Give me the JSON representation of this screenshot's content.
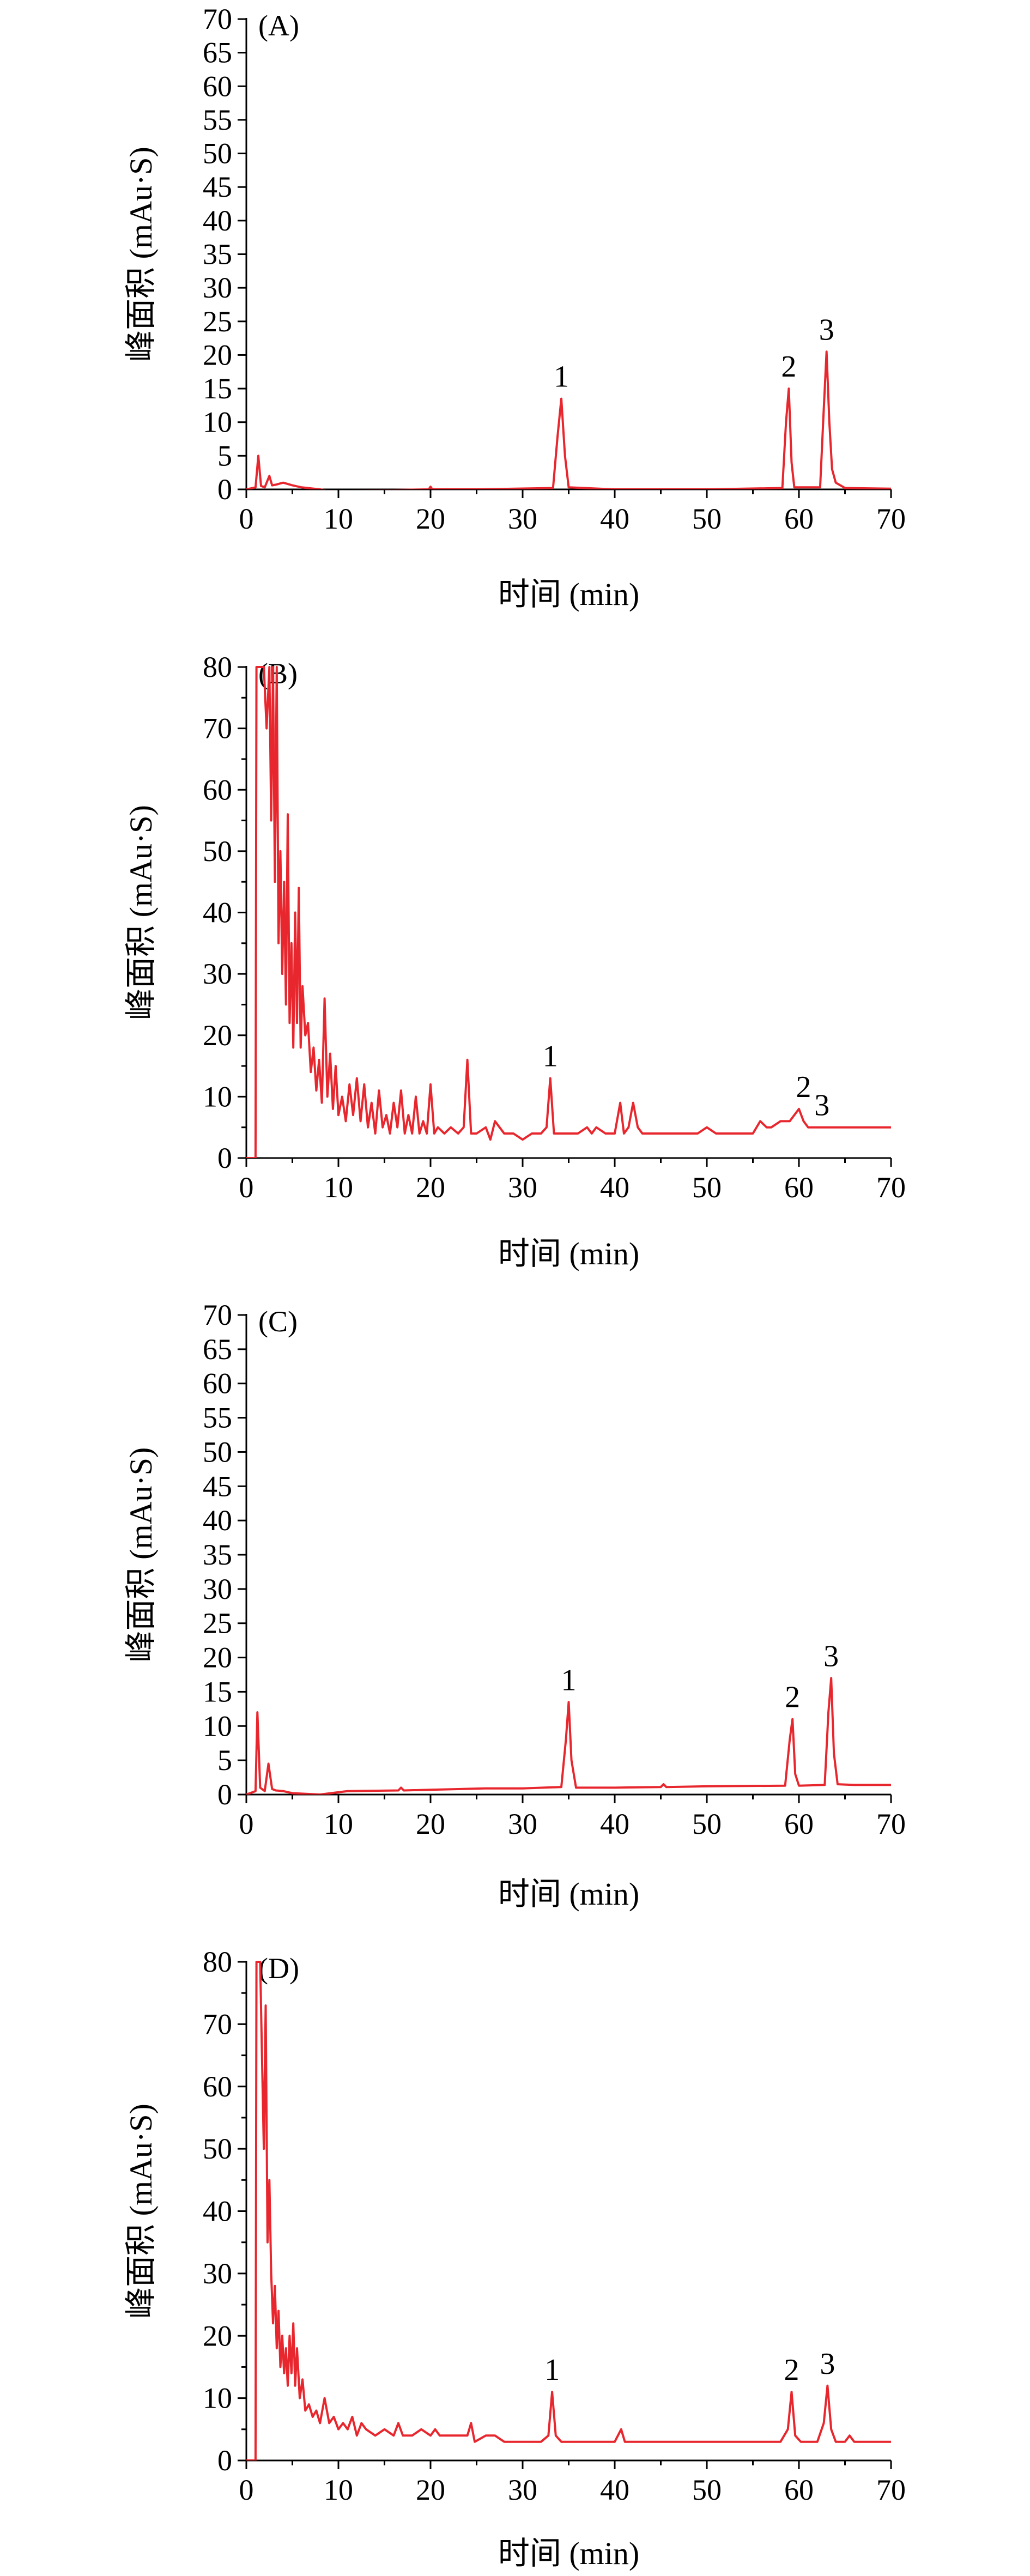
{
  "chart_data": [
    {
      "type": "line",
      "panel_label": "(A)",
      "xlabel": "时间 (min)",
      "ylabel": "峰面积 (mAu·S)",
      "xlim": [
        0,
        70
      ],
      "ylim": [
        0,
        70
      ],
      "xticks": [
        0,
        10,
        20,
        30,
        40,
        50,
        60,
        70
      ],
      "yticks": [
        0,
        5,
        10,
        15,
        20,
        25,
        30,
        35,
        40,
        45,
        50,
        55,
        60,
        65,
        70
      ],
      "grid": false,
      "series": [
        {
          "color": "#e8262d",
          "x": [
            0,
            1.0,
            1.3,
            1.6,
            2.0,
            2.5,
            2.8,
            3.2,
            4.0,
            5.0,
            6.0,
            8.0,
            9.0,
            15.0,
            19.8,
            20.0,
            20.2,
            25.0,
            33.3,
            33.8,
            34.2,
            34.6,
            35.0,
            40.0,
            50.0,
            58.2,
            58.6,
            58.9,
            59.2,
            59.5,
            62.3,
            62.7,
            63.0,
            63.3,
            63.6,
            64.0,
            65.0,
            70.0
          ],
          "y": [
            0,
            0.3,
            5.0,
            0.5,
            0.3,
            2.0,
            0.6,
            0.7,
            1.0,
            0.6,
            0.3,
            0.0,
            -0.2,
            -0.1,
            0.0,
            0.4,
            0.0,
            0.0,
            0.2,
            8.0,
            13.5,
            5.0,
            0.3,
            0.0,
            0.0,
            0.2,
            10.0,
            15.0,
            4.0,
            0.3,
            0.3,
            12.0,
            20.5,
            10.0,
            3.0,
            1.0,
            0.2,
            0.1
          ]
        }
      ],
      "annotations": [
        {
          "text": "1",
          "x": 34.2,
          "y": 13.5
        },
        {
          "text": "2",
          "x": 58.9,
          "y": 15.0
        },
        {
          "text": "3",
          "x": 63.0,
          "y": 20.5
        }
      ]
    },
    {
      "type": "line",
      "panel_label": "(B)",
      "xlabel": "时间 (min)",
      "ylabel": "峰面积 (mAu·S)",
      "xlim": [
        0,
        70
      ],
      "ylim": [
        0,
        80
      ],
      "xticks": [
        0,
        10,
        20,
        30,
        40,
        50,
        60,
        70
      ],
      "yticks": [
        0,
        10,
        20,
        30,
        40,
        50,
        60,
        70,
        80
      ],
      "grid": false,
      "series": [
        {
          "color": "#e8262d",
          "x": [
            0,
            1.0,
            1.1,
            1.3,
            1.6,
            1.9,
            2.2,
            2.5,
            2.7,
            2.9,
            3.1,
            3.3,
            3.5,
            3.7,
            3.9,
            4.1,
            4.3,
            4.5,
            4.7,
            4.9,
            5.1,
            5.3,
            5.5,
            5.7,
            5.9,
            6.1,
            6.4,
            6.7,
            7.0,
            7.3,
            7.6,
            7.9,
            8.2,
            8.5,
            8.8,
            9.1,
            9.4,
            9.7,
            10.0,
            10.4,
            10.8,
            11.2,
            11.6,
            12.0,
            12.4,
            12.8,
            13.2,
            13.6,
            14.0,
            14.4,
            14.8,
            15.2,
            15.6,
            16.0,
            16.4,
            16.8,
            17.2,
            17.6,
            18.0,
            18.4,
            18.8,
            19.2,
            19.6,
            20.0,
            20.4,
            20.8,
            21.5,
            22.2,
            23.0,
            23.6,
            24.0,
            24.4,
            25.0,
            26.0,
            26.5,
            27.0,
            28.0,
            29.0,
            30.0,
            31.0,
            32.0,
            32.6,
            33.0,
            33.4,
            34.0,
            35.0,
            36.0,
            37.0,
            37.5,
            38.0,
            39.0,
            40.0,
            40.6,
            41.0,
            41.5,
            42.0,
            42.5,
            43.0,
            44.0,
            45.0,
            46.0,
            47.0,
            48.0,
            49.0,
            50.0,
            51.0,
            52.0,
            53.0,
            54.0,
            55.0,
            55.8,
            56.5,
            57.0,
            58.0,
            59.0,
            59.5,
            60.0,
            60.5,
            61.0,
            61.5,
            62.0,
            62.5,
            63.0,
            63.5,
            64.0,
            65.0,
            65.5,
            66.0,
            67.0,
            68.0,
            69.0,
            70.0
          ],
          "y": [
            0,
            0,
            80,
            80,
            80,
            80,
            70,
            80,
            55,
            80,
            45,
            80,
            35,
            50,
            30,
            45,
            25,
            56,
            22,
            35,
            18,
            40,
            22,
            44,
            18,
            28,
            20,
            22,
            14,
            18,
            11,
            16,
            9,
            26,
            10,
            17,
            8,
            15,
            7,
            10,
            6,
            12,
            7,
            13,
            6,
            12,
            5,
            9,
            4,
            11,
            5,
            7,
            4,
            9,
            5,
            11,
            4,
            7,
            4,
            10,
            4,
            6,
            4,
            12,
            4,
            5,
            4,
            5,
            4,
            5,
            16,
            4,
            4,
            5,
            3,
            6,
            4,
            4,
            3,
            4,
            4,
            5,
            13,
            4,
            4,
            4,
            4,
            5,
            4,
            5,
            4,
            4,
            9,
            4,
            5,
            9,
            5,
            4,
            4,
            4,
            4,
            4,
            4,
            4,
            5,
            4,
            4,
            4,
            4,
            4,
            6,
            5,
            5,
            6,
            6,
            7,
            8,
            6,
            5,
            5,
            5,
            5,
            5,
            5,
            5,
            5,
            5,
            5,
            5,
            5,
            5,
            5
          ]
        }
      ],
      "annotations": [
        {
          "text": "1",
          "x": 33.0,
          "y": 13
        },
        {
          "text": "2",
          "x": 60.5,
          "y": 8
        },
        {
          "text": "3",
          "x": 62.5,
          "y": 5
        }
      ]
    },
    {
      "type": "line",
      "panel_label": "(C)",
      "xlabel": "时间 (min)",
      "ylabel": "峰面积 (mAu·S)",
      "xlim": [
        0,
        70
      ],
      "ylim": [
        0,
        70
      ],
      "xticks": [
        0,
        10,
        20,
        30,
        40,
        50,
        60,
        70
      ],
      "yticks": [
        0,
        5,
        10,
        15,
        20,
        25,
        30,
        35,
        40,
        45,
        50,
        55,
        60,
        65,
        70
      ],
      "grid": false,
      "series": [
        {
          "color": "#e8262d",
          "x": [
            0,
            1.0,
            1.2,
            1.5,
            2.0,
            2.4,
            2.8,
            3.2,
            4.0,
            5.0,
            8.0,
            11.0,
            16.5,
            16.8,
            17.1,
            20.0,
            26.0,
            30.0,
            34.2,
            34.7,
            35.0,
            35.3,
            35.8,
            40.0,
            45.0,
            45.3,
            45.6,
            50.0,
            58.5,
            59.0,
            59.3,
            59.6,
            60.0,
            62.8,
            63.2,
            63.5,
            63.8,
            64.2,
            66.0,
            70.0
          ],
          "y": [
            0,
            0.5,
            12.0,
            1.0,
            0.5,
            4.5,
            0.8,
            0.6,
            0.5,
            0.2,
            0.0,
            0.5,
            0.6,
            1.0,
            0.6,
            0.7,
            0.9,
            0.9,
            1.1,
            8.0,
            13.5,
            5.0,
            1.0,
            1.0,
            1.1,
            1.5,
            1.1,
            1.2,
            1.3,
            8.0,
            11.0,
            3.0,
            1.3,
            1.4,
            12.0,
            17.0,
            6.0,
            1.5,
            1.4,
            1.4
          ]
        }
      ],
      "annotations": [
        {
          "text": "1",
          "x": 35.0,
          "y": 13.5
        },
        {
          "text": "2",
          "x": 59.3,
          "y": 11.0
        },
        {
          "text": "3",
          "x": 63.5,
          "y": 17.0
        }
      ]
    },
    {
      "type": "line",
      "panel_label": "(D)",
      "xlabel": "时间 (min)",
      "ylabel": "峰面积 (mAu·S)",
      "xlim": [
        0,
        70
      ],
      "ylim": [
        0,
        80
      ],
      "xticks": [
        0,
        10,
        20,
        30,
        40,
        50,
        60,
        70
      ],
      "yticks": [
        0,
        10,
        20,
        30,
        40,
        50,
        60,
        70,
        80
      ],
      "grid": false,
      "series": [
        {
          "color": "#e8262d",
          "x": [
            0,
            1.0,
            1.1,
            1.3,
            1.5,
            1.7,
            1.9,
            2.1,
            2.3,
            2.5,
            2.7,
            2.9,
            3.1,
            3.3,
            3.5,
            3.7,
            3.9,
            4.1,
            4.3,
            4.5,
            4.7,
            4.9,
            5.1,
            5.3,
            5.5,
            5.8,
            6.1,
            6.4,
            6.8,
            7.2,
            7.6,
            8.0,
            8.5,
            9.0,
            9.5,
            10.0,
            10.5,
            11.0,
            11.5,
            12.0,
            12.5,
            13.0,
            14.0,
            15.0,
            16.0,
            16.5,
            17.0,
            18.0,
            19.0,
            20.0,
            20.5,
            21.0,
            22.0,
            23.0,
            24.0,
            24.4,
            24.8,
            26.0,
            27.0,
            28.0,
            30.0,
            32.0,
            32.8,
            33.2,
            33.6,
            34.2,
            36.0,
            38.0,
            40.0,
            40.7,
            41.1,
            42.0,
            45.0,
            50.0,
            55.0,
            58.0,
            58.8,
            59.2,
            59.6,
            60.2,
            62.0,
            62.7,
            63.1,
            63.5,
            64.0,
            65.0,
            65.5,
            66.0,
            70.0
          ],
          "y": [
            0,
            0,
            80,
            80,
            80,
            65,
            50,
            73,
            35,
            45,
            30,
            22,
            28,
            18,
            24,
            15,
            20,
            14,
            18,
            12,
            20,
            14,
            22,
            12,
            18,
            10,
            13,
            8,
            9,
            7,
            8,
            6,
            10,
            6,
            7,
            5,
            6,
            5,
            7,
            4,
            6,
            5,
            4,
            5,
            4,
            6,
            4,
            4,
            5,
            4,
            5,
            4,
            4,
            4,
            4,
            6,
            3,
            4,
            4,
            3,
            3,
            3,
            4,
            11,
            4,
            3,
            3,
            3,
            3,
            5,
            3,
            3,
            3,
            3,
            3,
            3,
            5,
            11,
            4,
            3,
            3,
            6,
            12,
            5,
            3,
            3,
            4,
            3,
            3
          ]
        }
      ],
      "annotations": [
        {
          "text": "1",
          "x": 33.2,
          "y": 11
        },
        {
          "text": "2",
          "x": 59.2,
          "y": 11
        },
        {
          "text": "3",
          "x": 63.1,
          "y": 12
        }
      ]
    }
  ]
}
